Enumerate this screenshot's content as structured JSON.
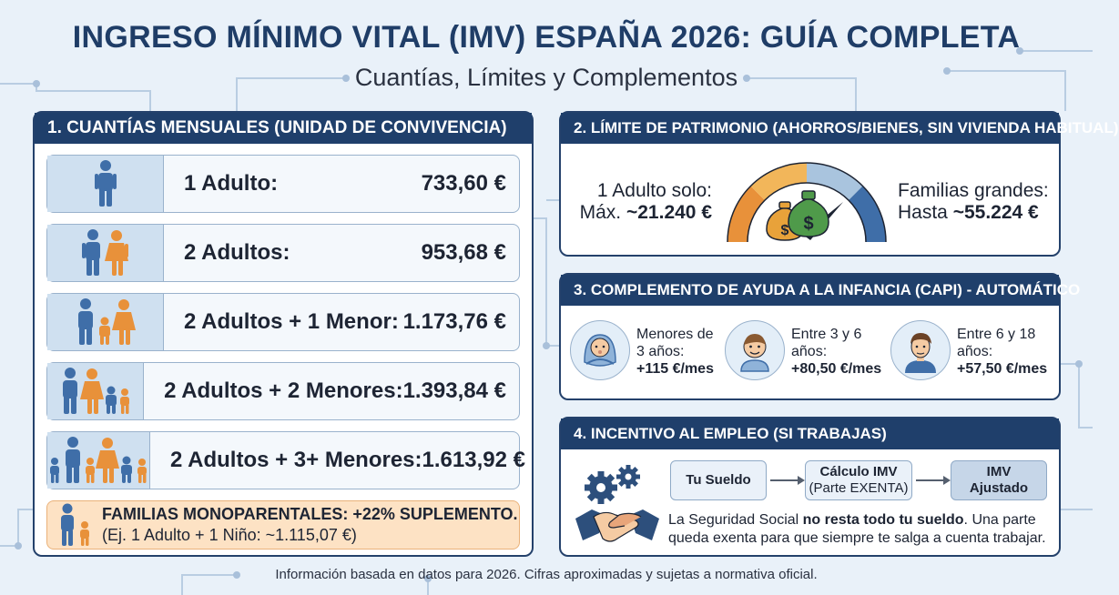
{
  "header": {
    "title": "INGRESO MÍNIMO VITAL (IMV) ESPAÑA 2026: GUÍA COMPLETA",
    "subtitle": "Cuantías, Límites y Complementos"
  },
  "cuantias": {
    "heading": "1. CUANTÍAS MENSUALES (UNIDAD DE CONVIVENCIA)",
    "rows": [
      {
        "label": "1 Adulto:",
        "value": "733,60 €",
        "icon": "single-adult-icon"
      },
      {
        "label": "2 Adultos:",
        "value": "953,68 €",
        "icon": "two-adults-icon"
      },
      {
        "label": "2 Adultos + 1 Menor:",
        "value": "1.173,76 €",
        "icon": "family-one-child-icon"
      },
      {
        "label": "2 Adultos + 2 Menores:",
        "value": "1.393,84 €",
        "icon": "family-two-children-icon"
      },
      {
        "label": "2 Adultos + 3+ Menores:",
        "value": "1.613,92 €",
        "icon": "family-three-children-icon"
      }
    ],
    "monoparental": {
      "title": "FAMILIAS MONOPARENTALES: +22% SUPLEMENTO.",
      "example": "(Ej. 1 Adulto + 1 Niño: ~1.115,07 €)"
    }
  },
  "patrimonio": {
    "heading": "2. LÍMITE DE PATRIMONIO (AHORROS/BIENES, SIN VIVIENDA HABITUAL)",
    "left_line1": "1 Adulto solo:",
    "left_prefix": "Máx.",
    "left_value": "~21.240 €",
    "right_line1": "Familias grandes:",
    "right_prefix": "Hasta",
    "right_value": "~55.224 €"
  },
  "capi": {
    "heading": "3. COMPLEMENTO DE AYUDA A LA INFANCIA (CAPI) - AUTOMÁTICO",
    "items": [
      {
        "line1": "Menores de",
        "line2": "3 años:",
        "amount": "+115 €/mes"
      },
      {
        "line1": "Entre 3 y 6",
        "line2": "años:",
        "amount": "+80,50 €/mes"
      },
      {
        "line1": "Entre 6 y 18",
        "line2": "años:",
        "amount": "+57,50 €/mes"
      }
    ]
  },
  "empleo": {
    "heading": "4. INCENTIVO AL EMPLEO (SI TRABAJAS)",
    "step1": "Tu Sueldo",
    "step2_line1": "Cálculo IMV",
    "step2_line2": "(Parte EXENTA)",
    "step3_line1": "IMV",
    "step3_line2": "Ajustado",
    "text_before": "La Seguridad Social ",
    "text_bold": "no resta todo tu sueldo",
    "text_after": ". Una parte queda exenta para que siempre te salga a cuenta trabajar."
  },
  "footer": "Información basada en datos para 2026. Cifras aproximadas y sujetas a normativa oficial.",
  "colors": {
    "navy": "#1f3f6b",
    "blue_figure": "#3f6ea8",
    "orange_figure": "#e8913a",
    "orange_box": "#fde2c4",
    "gauge_orange": "#e8913a",
    "gauge_yellow": "#f2b65a",
    "gauge_light_blue": "#a9c4de",
    "gauge_dark_blue": "#3f6ea8",
    "money_green": "#4f9a4a"
  }
}
